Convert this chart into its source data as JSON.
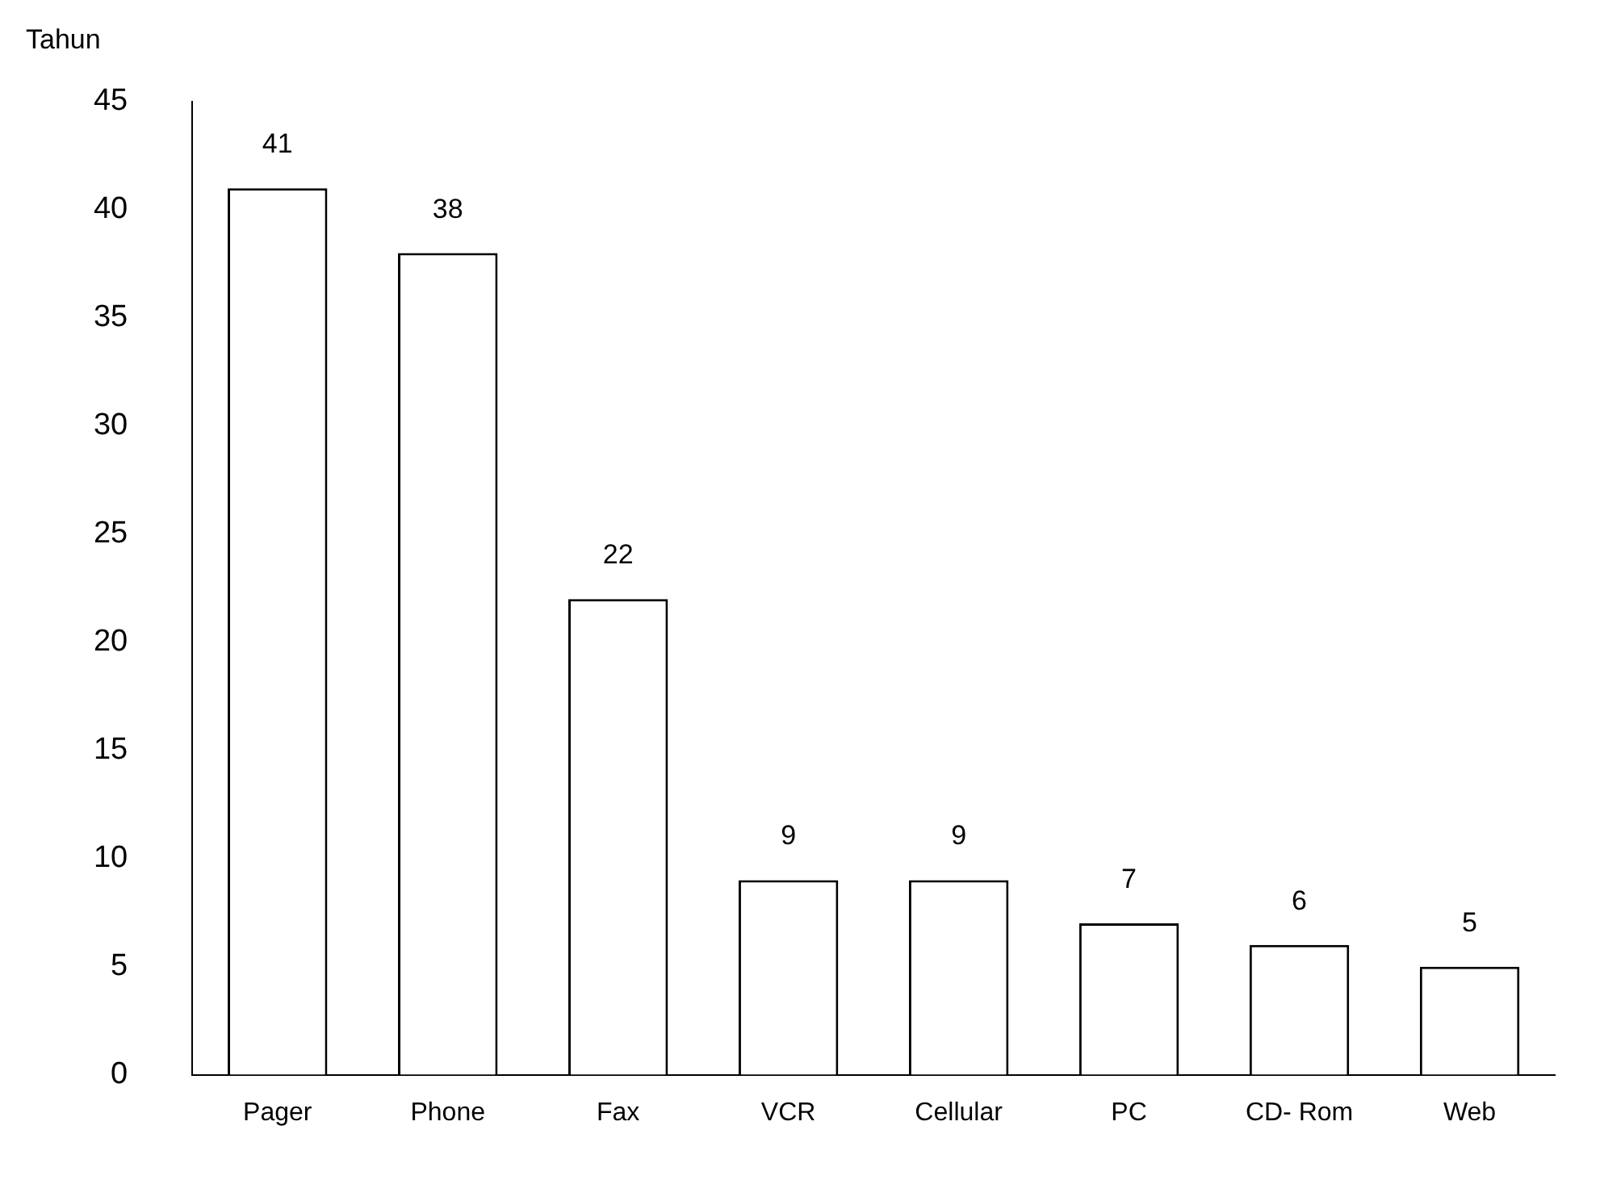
{
  "chart_data": {
    "type": "bar",
    "ylabel": "Tahun",
    "categories": [
      "Pager",
      "Phone",
      "Fax",
      "VCR",
      "Cellular",
      "PC",
      "CD- Rom",
      "Web"
    ],
    "values": [
      41,
      38,
      22,
      9,
      9,
      7,
      6,
      5
    ],
    "color": "#ffffff",
    "ylim": [
      0,
      45
    ],
    "yticks": [
      0,
      5,
      10,
      15,
      20,
      25,
      30,
      35,
      40,
      45
    ],
    "data_labels": true,
    "grid": false,
    "legend": false
  }
}
